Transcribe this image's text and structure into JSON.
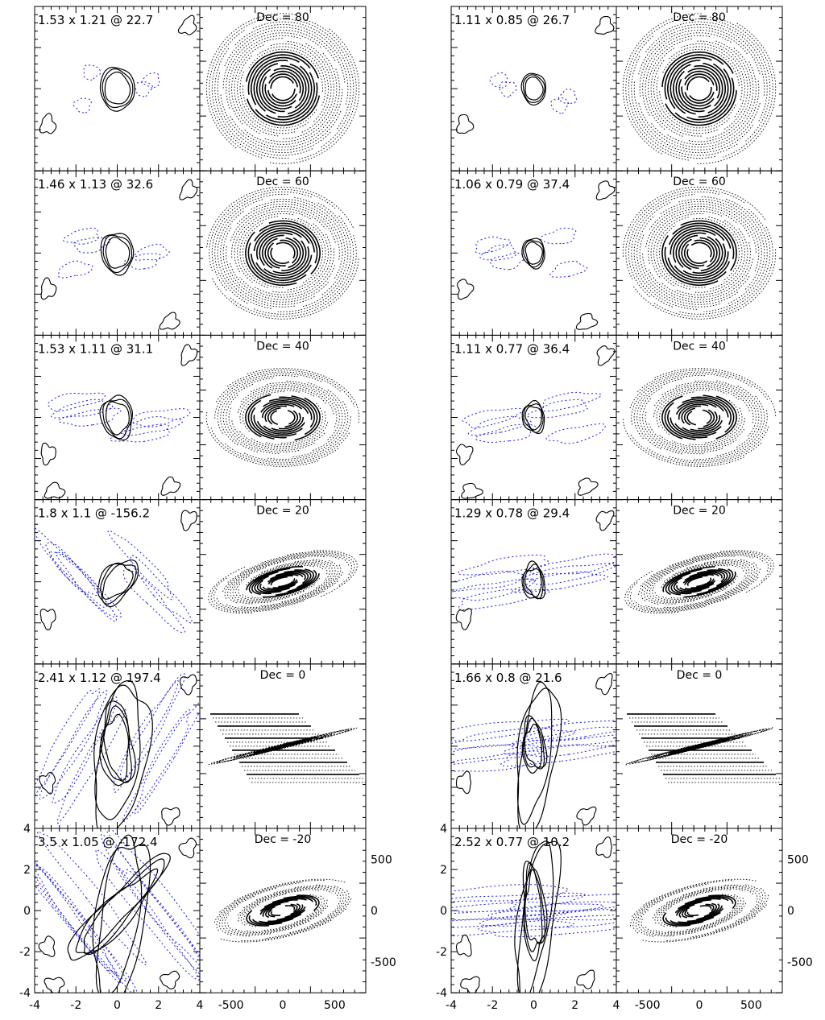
{
  "chart_data": {
    "type": "grid-of-panels",
    "description_rows": 6,
    "columns": [
      {
        "group": "left",
        "beam_panels": [
          {
            "label": "1.53 x 1.21 @ 22.7",
            "major": 1.53,
            "minor": 1.21,
            "pa": 22.7
          },
          {
            "label": "1.46 x 1.13 @ 32.6",
            "major": 1.46,
            "minor": 1.13,
            "pa": 32.6
          },
          {
            "label": "1.53 x 1.11 @ 31.1",
            "major": 1.53,
            "minor": 1.11,
            "pa": 31.1
          },
          {
            "label": "1.8 x 1.1 @ -156.2",
            "major": 1.8,
            "minor": 1.1,
            "pa": -156.2
          },
          {
            "label": "2.41 x 1.12 @ 197.4",
            "major": 2.41,
            "minor": 1.12,
            "pa": 197.4
          },
          {
            "label": "3.5 x 1.05 @ -172.4",
            "major": 3.5,
            "minor": 1.05,
            "pa": -172.4
          }
        ],
        "uv_panels": [
          {
            "label": "Dec = 80",
            "dec": 80
          },
          {
            "label": "Dec = 60",
            "dec": 60
          },
          {
            "label": "Dec = 40",
            "dec": 40
          },
          {
            "label": "Dec = 20",
            "dec": 20
          },
          {
            "label": "Dec = 0",
            "dec": 0
          },
          {
            "label": "Dec = -20",
            "dec": -20
          }
        ]
      },
      {
        "group": "right",
        "beam_panels": [
          {
            "label": "1.11 x 0.85 @ 26.7",
            "major": 1.11,
            "minor": 0.85,
            "pa": 26.7
          },
          {
            "label": "1.06 x 0.79 @ 37.4",
            "major": 1.06,
            "minor": 0.79,
            "pa": 37.4
          },
          {
            "label": "1.11 x 0.77 @ 36.4",
            "major": 1.11,
            "minor": 0.77,
            "pa": 36.4
          },
          {
            "label": "1.29 x 0.78 @ 29.4",
            "major": 1.29,
            "minor": 0.78,
            "pa": 29.4
          },
          {
            "label": "1.66 x 0.8 @ 21.6",
            "major": 1.66,
            "minor": 0.8,
            "pa": 21.6
          },
          {
            "label": "2.52 x 0.77 @ 10.2",
            "major": 2.52,
            "minor": 0.77,
            "pa": 10.2
          }
        ],
        "uv_panels": [
          {
            "label": "Dec = 80",
            "dec": 80
          },
          {
            "label": "Dec = 60",
            "dec": 60
          },
          {
            "label": "Dec = 40",
            "dec": 40
          },
          {
            "label": "Dec = 20",
            "dec": 20
          },
          {
            "label": "Dec = 0",
            "dec": 0
          },
          {
            "label": "Dec = -20",
            "dec": -20
          }
        ]
      }
    ],
    "beam_axes": {
      "xlim": [
        -4,
        4
      ],
      "ylim": [
        -4,
        4
      ],
      "x_ticks": [
        "-4",
        "-2",
        "0",
        "2",
        "4"
      ],
      "y_ticks": [
        "4",
        "2",
        "0",
        "-2",
        "-4"
      ]
    },
    "uv_axes": {
      "xlim": [
        -800,
        800
      ],
      "ylim": [
        -800,
        800
      ],
      "x_ticks": [
        "-500",
        "0",
        "500"
      ],
      "y_ticks": [
        "500",
        "0",
        "-500"
      ]
    },
    "colors": {
      "positive_contour": "#000000",
      "negative_contour": "#1a1ae6",
      "frame": "#000000"
    }
  }
}
